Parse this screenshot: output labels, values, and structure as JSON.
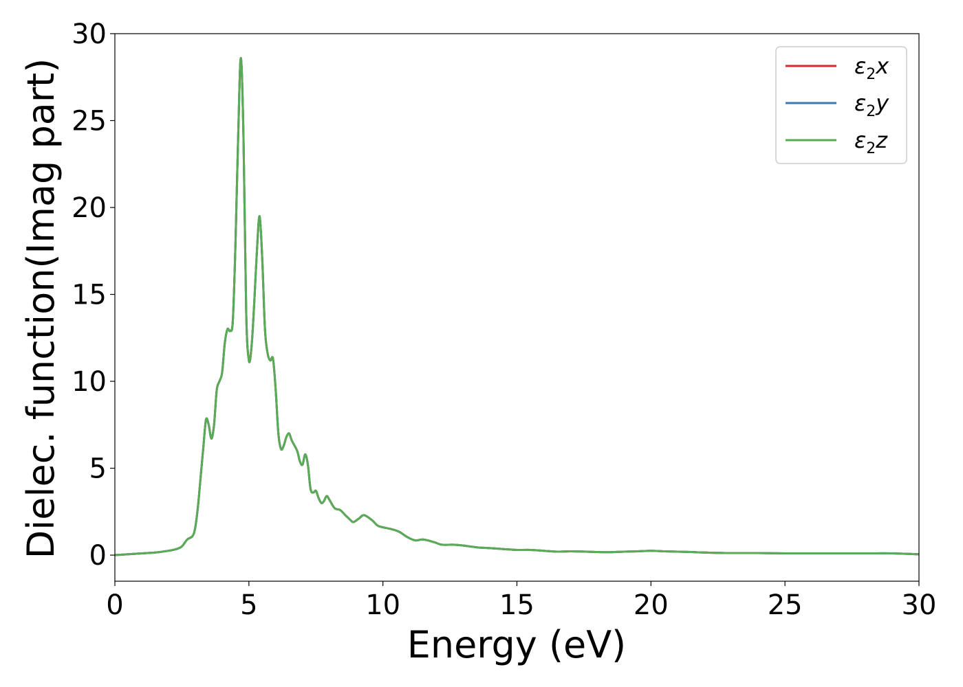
{
  "chart_data": {
    "type": "line",
    "xlabel": "Energy (eV)",
    "ylabel": "Dielec. function(Imag part)",
    "xlim": [
      0,
      30
    ],
    "ylim": [
      -1.5,
      30
    ],
    "xticks": [
      "0",
      "5",
      "10",
      "15",
      "20",
      "25",
      "30"
    ],
    "yticks": [
      "0",
      "5",
      "10",
      "15",
      "20",
      "25",
      "30"
    ],
    "grid": false,
    "legend_position": "top-right",
    "legend": [
      {
        "base": "ε",
        "sub": "2",
        "suffix": "x",
        "color": "#d62728"
      },
      {
        "base": "ε",
        "sub": "2",
        "suffix": "y",
        "color": "#3a78b5"
      },
      {
        "base": "ε",
        "sub": "2",
        "suffix": "z",
        "color": "#5aab55"
      }
    ],
    "series": [
      {
        "name": "ε2x",
        "color": "#d62728",
        "x": [
          0,
          0.5,
          1.0,
          1.5,
          2.0,
          2.3,
          2.5,
          2.7,
          2.9,
          3.0,
          3.1,
          3.2,
          3.3,
          3.4,
          3.5,
          3.6,
          3.7,
          3.8,
          3.9,
          4.0,
          4.1,
          4.2,
          4.3,
          4.4,
          4.5,
          4.6,
          4.7,
          4.8,
          4.9,
          5.0,
          5.1,
          5.2,
          5.3,
          5.4,
          5.5,
          5.6,
          5.7,
          5.8,
          5.9,
          6.0,
          6.1,
          6.2,
          6.3,
          6.4,
          6.5,
          6.6,
          6.8,
          6.9,
          7.0,
          7.1,
          7.2,
          7.3,
          7.4,
          7.5,
          7.6,
          7.7,
          7.8,
          7.9,
          8.0,
          8.2,
          8.4,
          8.6,
          8.8,
          8.9,
          9.1,
          9.3,
          9.6,
          9.8,
          10.0,
          10.3,
          10.6,
          10.9,
          11.2,
          11.5,
          11.9,
          12.2,
          12.6,
          13.0,
          13.5,
          14.0,
          14.5,
          15.0,
          15.5,
          16.0,
          16.5,
          17.0,
          17.6,
          18.0,
          18.5,
          19.0,
          19.5,
          20.0,
          20.5,
          21.0,
          21.5,
          22.0,
          23.0,
          24.0,
          25.0,
          26.0,
          27.0,
          28.0,
          29.0,
          30.0
        ],
        "y": [
          0.0,
          0.05,
          0.1,
          0.15,
          0.25,
          0.35,
          0.5,
          0.9,
          1.1,
          1.6,
          2.8,
          4.5,
          6.2,
          7.8,
          7.5,
          6.7,
          7.5,
          9.5,
          10.0,
          10.5,
          12.2,
          13.0,
          12.9,
          13.5,
          18.0,
          24.0,
          28.6,
          24.0,
          14.0,
          11.2,
          12.0,
          14.5,
          17.5,
          19.5,
          17.0,
          13.0,
          11.6,
          11.2,
          11.3,
          9.5,
          7.0,
          6.1,
          6.3,
          6.8,
          7.0,
          6.6,
          6.0,
          5.4,
          5.2,
          5.8,
          5.2,
          3.8,
          3.6,
          3.7,
          3.3,
          3.0,
          3.1,
          3.4,
          3.2,
          2.7,
          2.6,
          2.3,
          2.0,
          1.9,
          2.1,
          2.3,
          2.0,
          1.7,
          1.6,
          1.5,
          1.35,
          1.05,
          0.85,
          0.9,
          0.75,
          0.6,
          0.6,
          0.55,
          0.45,
          0.4,
          0.35,
          0.3,
          0.3,
          0.25,
          0.2,
          0.22,
          0.2,
          0.18,
          0.17,
          0.2,
          0.22,
          0.25,
          0.22,
          0.2,
          0.18,
          0.15,
          0.12,
          0.12,
          0.1,
          0.1,
          0.1,
          0.1,
          0.1,
          0.05
        ]
      },
      {
        "name": "ε2y",
        "color": "#3a78b5",
        "x": [
          0,
          0.5,
          1.0,
          1.5,
          2.0,
          2.3,
          2.5,
          2.7,
          2.9,
          3.0,
          3.1,
          3.2,
          3.3,
          3.4,
          3.5,
          3.6,
          3.7,
          3.8,
          3.9,
          4.0,
          4.1,
          4.2,
          4.3,
          4.4,
          4.5,
          4.6,
          4.7,
          4.8,
          4.9,
          5.0,
          5.1,
          5.2,
          5.3,
          5.4,
          5.5,
          5.6,
          5.7,
          5.8,
          5.9,
          6.0,
          6.1,
          6.2,
          6.3,
          6.4,
          6.5,
          6.6,
          6.8,
          6.9,
          7.0,
          7.1,
          7.2,
          7.3,
          7.4,
          7.5,
          7.6,
          7.7,
          7.8,
          7.9,
          8.0,
          8.2,
          8.4,
          8.6,
          8.8,
          8.9,
          9.1,
          9.3,
          9.6,
          9.8,
          10.0,
          10.3,
          10.6,
          10.9,
          11.2,
          11.5,
          11.9,
          12.2,
          12.6,
          13.0,
          13.5,
          14.0,
          14.5,
          15.0,
          15.5,
          16.0,
          16.5,
          17.0,
          17.6,
          18.0,
          18.5,
          19.0,
          19.5,
          20.0,
          20.5,
          21.0,
          21.5,
          22.0,
          23.0,
          24.0,
          25.0,
          26.0,
          27.0,
          28.0,
          29.0,
          30.0
        ],
        "y": [
          0.0,
          0.05,
          0.1,
          0.15,
          0.25,
          0.35,
          0.5,
          0.9,
          1.1,
          1.6,
          2.8,
          4.5,
          6.2,
          7.8,
          7.5,
          6.7,
          7.5,
          9.5,
          10.0,
          10.5,
          12.2,
          13.0,
          12.9,
          13.5,
          18.0,
          24.0,
          28.6,
          24.0,
          14.0,
          11.2,
          12.0,
          14.5,
          17.5,
          19.5,
          17.0,
          13.0,
          11.6,
          11.2,
          11.3,
          9.5,
          7.0,
          6.1,
          6.3,
          6.8,
          7.0,
          6.6,
          6.0,
          5.4,
          5.2,
          5.8,
          5.2,
          3.8,
          3.6,
          3.7,
          3.3,
          3.0,
          3.1,
          3.4,
          3.2,
          2.7,
          2.6,
          2.3,
          2.0,
          1.9,
          2.1,
          2.3,
          2.0,
          1.7,
          1.6,
          1.5,
          1.35,
          1.05,
          0.85,
          0.9,
          0.75,
          0.6,
          0.6,
          0.55,
          0.45,
          0.4,
          0.35,
          0.3,
          0.3,
          0.25,
          0.2,
          0.22,
          0.2,
          0.18,
          0.17,
          0.2,
          0.22,
          0.25,
          0.22,
          0.2,
          0.18,
          0.15,
          0.12,
          0.12,
          0.1,
          0.1,
          0.1,
          0.1,
          0.1,
          0.05
        ]
      },
      {
        "name": "ε2z",
        "color": "#5aab55",
        "x": [
          0,
          0.5,
          1.0,
          1.5,
          2.0,
          2.3,
          2.5,
          2.7,
          2.9,
          3.0,
          3.1,
          3.2,
          3.3,
          3.4,
          3.5,
          3.6,
          3.7,
          3.8,
          3.9,
          4.0,
          4.1,
          4.2,
          4.3,
          4.4,
          4.5,
          4.6,
          4.7,
          4.8,
          4.9,
          5.0,
          5.1,
          5.2,
          5.3,
          5.4,
          5.5,
          5.6,
          5.7,
          5.8,
          5.9,
          6.0,
          6.1,
          6.2,
          6.3,
          6.4,
          6.5,
          6.6,
          6.8,
          6.9,
          7.0,
          7.1,
          7.2,
          7.3,
          7.4,
          7.5,
          7.6,
          7.7,
          7.8,
          7.9,
          8.0,
          8.2,
          8.4,
          8.6,
          8.8,
          8.9,
          9.1,
          9.3,
          9.6,
          9.8,
          10.0,
          10.3,
          10.6,
          10.9,
          11.2,
          11.5,
          11.9,
          12.2,
          12.6,
          13.0,
          13.5,
          14.0,
          14.5,
          15.0,
          15.5,
          16.0,
          16.5,
          17.0,
          17.6,
          18.0,
          18.5,
          19.0,
          19.5,
          20.0,
          20.5,
          21.0,
          21.5,
          22.0,
          23.0,
          24.0,
          25.0,
          26.0,
          27.0,
          28.0,
          29.0,
          30.0
        ],
        "y": [
          0.0,
          0.05,
          0.1,
          0.15,
          0.25,
          0.35,
          0.5,
          0.9,
          1.1,
          1.6,
          2.8,
          4.5,
          6.2,
          7.8,
          7.5,
          6.7,
          7.5,
          9.5,
          10.0,
          10.5,
          12.2,
          13.0,
          12.9,
          13.5,
          18.0,
          24.0,
          28.6,
          24.0,
          14.0,
          11.2,
          12.0,
          14.5,
          17.5,
          19.5,
          17.0,
          13.0,
          11.6,
          11.2,
          11.3,
          9.5,
          7.0,
          6.1,
          6.3,
          6.8,
          7.0,
          6.6,
          6.0,
          5.4,
          5.2,
          5.8,
          5.2,
          3.8,
          3.6,
          3.7,
          3.3,
          3.0,
          3.1,
          3.4,
          3.2,
          2.7,
          2.6,
          2.3,
          2.0,
          1.9,
          2.1,
          2.3,
          2.0,
          1.7,
          1.6,
          1.5,
          1.35,
          1.05,
          0.85,
          0.9,
          0.75,
          0.6,
          0.6,
          0.55,
          0.45,
          0.4,
          0.35,
          0.3,
          0.3,
          0.25,
          0.2,
          0.22,
          0.2,
          0.18,
          0.17,
          0.2,
          0.22,
          0.25,
          0.22,
          0.2,
          0.18,
          0.15,
          0.12,
          0.12,
          0.1,
          0.1,
          0.1,
          0.1,
          0.1,
          0.05
        ]
      }
    ]
  }
}
